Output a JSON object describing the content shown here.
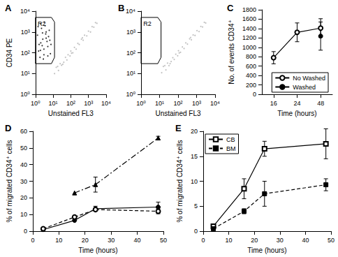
{
  "chart_data": [
    {
      "type": "scatter",
      "title": "A",
      "x_label": "Unstained FL3",
      "y_label": "CD34 PE",
      "log": true,
      "xlim": [
        1,
        10000
      ],
      "ylim": [
        1,
        10000
      ],
      "xticks": [
        {
          "value": 1,
          "label": "10⁰"
        },
        {
          "value": 10,
          "label": "10¹"
        },
        {
          "value": 100,
          "label": "10²"
        },
        {
          "value": 1000,
          "label": "10³"
        },
        {
          "value": 10000,
          "label": "10⁴"
        }
      ],
      "yticks": [
        {
          "value": 1,
          "label": "10⁰"
        },
        {
          "value": 10,
          "label": "10¹"
        },
        {
          "value": 100,
          "label": "10²"
        },
        {
          "value": 1000,
          "label": "10³"
        },
        {
          "value": 10000,
          "label": "10⁴"
        }
      ],
      "series": [
        {
          "color": "#000000",
          "values": [
            [
              1.5,
              120
            ],
            [
              2,
              300
            ],
            [
              3,
              80
            ],
            [
              4,
              500
            ],
            [
              2.5,
              900
            ],
            [
              1.8,
              60
            ],
            [
              5,
              200
            ],
            [
              6,
              1200
            ],
            [
              3.5,
              2000
            ],
            [
              2.2,
              1500
            ],
            [
              1.3,
              700
            ],
            [
              4.5,
              350
            ],
            [
              7,
              90
            ],
            [
              3,
              150
            ],
            [
              2,
              2500
            ],
            [
              5.5,
              600
            ],
            [
              1.6,
              250
            ],
            [
              2.8,
              50
            ],
            [
              6.5,
              400
            ],
            [
              4,
              1000
            ],
            [
              1.4,
              1800
            ],
            [
              3.2,
              3000
            ],
            [
              2.6,
              450
            ],
            [
              5,
              70
            ],
            [
              7.5,
              250
            ],
            [
              1.9,
              130
            ],
            [
              3.8,
              800
            ],
            [
              2.4,
              220
            ]
          ]
        },
        {
          "color": "#b0b0b0",
          "values": [
            [
              12,
              10
            ],
            [
              15,
              20
            ],
            [
              20,
              14
            ],
            [
              25,
              30
            ],
            [
              30,
              25
            ],
            [
              40,
              35
            ],
            [
              50,
              60
            ],
            [
              60,
              45
            ],
            [
              70,
              80
            ],
            [
              90,
              70
            ],
            [
              100,
              120
            ],
            [
              130,
              100
            ],
            [
              160,
              180
            ],
            [
              200,
              150
            ],
            [
              250,
              280
            ],
            [
              300,
              250
            ],
            [
              400,
              450
            ],
            [
              500,
              400
            ],
            [
              600,
              700
            ],
            [
              800,
              650
            ],
            [
              1000,
              1100
            ],
            [
              1300,
              1000
            ],
            [
              1600,
              1800
            ],
            [
              2000,
              1700
            ],
            [
              2500,
              2800
            ],
            [
              3000,
              2600
            ],
            [
              18,
              22
            ],
            [
              35,
              28
            ],
            [
              110,
              95
            ],
            [
              450,
              520
            ]
          ]
        }
      ],
      "gate": {
        "label": "R2",
        "points": [
          [
            1,
            40
          ],
          [
            1,
            5000
          ],
          [
            8,
            5000
          ],
          [
            12,
            3000
          ],
          [
            12,
            60
          ],
          [
            8,
            30
          ],
          [
            1,
            30
          ]
        ]
      }
    },
    {
      "type": "scatter",
      "title": "B",
      "x_label": "Unstained FL3",
      "log": true,
      "xlim": [
        1,
        10000
      ],
      "ylim": [
        1,
        10000
      ],
      "xticks": [
        {
          "value": 1,
          "label": "10⁰"
        },
        {
          "value": 10,
          "label": "10¹"
        },
        {
          "value": 100,
          "label": "10²"
        },
        {
          "value": 1000,
          "label": "10³"
        },
        {
          "value": 10000,
          "label": "10⁴"
        }
      ],
      "yticks": [
        {
          "value": 1,
          "label": "10⁰"
        },
        {
          "value": 10,
          "label": "10¹"
        },
        {
          "value": 100,
          "label": "10²"
        },
        {
          "value": 1000,
          "label": "10³"
        },
        {
          "value": 10000,
          "label": "10⁴"
        }
      ],
      "series": [
        {
          "color": "#b0b0b0",
          "values": [
            [
              13,
              11
            ],
            [
              16,
              22
            ],
            [
              22,
              15
            ],
            [
              27,
              32
            ],
            [
              32,
              24
            ],
            [
              42,
              38
            ],
            [
              52,
              58
            ],
            [
              62,
              48
            ],
            [
              75,
              85
            ],
            [
              95,
              72
            ],
            [
              105,
              125
            ],
            [
              135,
              105
            ],
            [
              170,
              190
            ],
            [
              210,
              160
            ],
            [
              260,
              300
            ],
            [
              320,
              260
            ],
            [
              420,
              470
            ],
            [
              520,
              420
            ],
            [
              650,
              720
            ],
            [
              820,
              680
            ],
            [
              1050,
              1150
            ],
            [
              1350,
              1050
            ],
            [
              1700,
              1850
            ],
            [
              2100,
              1750
            ],
            [
              2600,
              2900
            ],
            [
              3100,
              2700
            ],
            [
              19,
              24
            ],
            [
              37,
              30
            ],
            [
              115,
              98
            ],
            [
              470,
              540
            ]
          ]
        }
      ],
      "gate": {
        "label": "R2",
        "points": [
          [
            1,
            40
          ],
          [
            1,
            5000
          ],
          [
            8,
            5000
          ],
          [
            12,
            3000
          ],
          [
            12,
            60
          ],
          [
            8,
            30
          ],
          [
            1,
            30
          ]
        ]
      }
    },
    {
      "type": "line",
      "title": "C",
      "x_label": "Time (hours)",
      "y_label": "No. of events CD34⁺",
      "categories": [
        "16",
        "24",
        "48"
      ],
      "ylim": [
        0,
        1800
      ],
      "yticks": [
        0,
        200,
        400,
        600,
        800,
        1000,
        1200,
        1400,
        1600,
        1800
      ],
      "legend": "lower right",
      "series": [
        {
          "name": "No Washed",
          "color": "#000000",
          "marker": "open_circle",
          "line_style": "solid",
          "values": [
            780,
            1320,
            1410
          ],
          "errors": [
            130,
            200,
            200
          ]
        },
        {
          "name": "Washed",
          "color": "#000000",
          "marker": "circle",
          "line_style": "solid",
          "values": [
            null,
            null,
            1240
          ],
          "errors": [
            null,
            null,
            300
          ]
        }
      ]
    },
    {
      "type": "line",
      "title": "D",
      "x_label": "Time (hours)",
      "y_label": "% of migrated CD34⁺ cells",
      "x": [
        4,
        16,
        24,
        48
      ],
      "xlim": [
        0,
        50
      ],
      "xticks": [
        0,
        10,
        20,
        30,
        40,
        50
      ],
      "ylim": [
        0,
        60
      ],
      "yticks": [
        0,
        10,
        20,
        30,
        40,
        50,
        60
      ],
      "series": [
        {
          "color": "#000000",
          "marker": "triangle",
          "line_style": "dashdot",
          "values": [
            null,
            23,
            28,
            56
          ],
          "errors": [
            null,
            null,
            4.5,
            1
          ]
        },
        {
          "color": "#000000",
          "marker": "circle",
          "line_style": "solid",
          "values": [
            1,
            6.5,
            13.5,
            14.5
          ],
          "errors": [
            null,
            null,
            1.5,
            3
          ]
        },
        {
          "color": "#000000",
          "marker": "open_circle",
          "line_style": "dashed",
          "values": [
            1.5,
            8.5,
            13,
            12
          ],
          "errors": [
            null,
            null,
            null,
            1.5
          ]
        }
      ]
    },
    {
      "type": "line",
      "title": "E",
      "x_label": "Time (hours)",
      "y_label": "% of migrated CD34⁺ cells",
      "x": [
        4,
        16,
        24,
        48
      ],
      "xlim": [
        0,
        50
      ],
      "xticks": [
        0,
        10,
        20,
        30,
        40,
        50
      ],
      "ylim": [
        0,
        20
      ],
      "yticks": [
        0,
        5,
        10,
        15,
        20
      ],
      "legend": "upper left",
      "series": [
        {
          "name": "CB",
          "color": "#000000",
          "marker": "open_square",
          "line_style": "solid",
          "values": [
            1,
            8.5,
            16.5,
            17.5
          ],
          "errors": [
            null,
            2,
            1.5,
            3
          ]
        },
        {
          "name": "BM",
          "color": "#000000",
          "marker": "square",
          "line_style": "dashed",
          "values": [
            0.5,
            4,
            7.5,
            9.3
          ],
          "errors": [
            null,
            0.5,
            2.5,
            1.2
          ]
        }
      ]
    }
  ]
}
